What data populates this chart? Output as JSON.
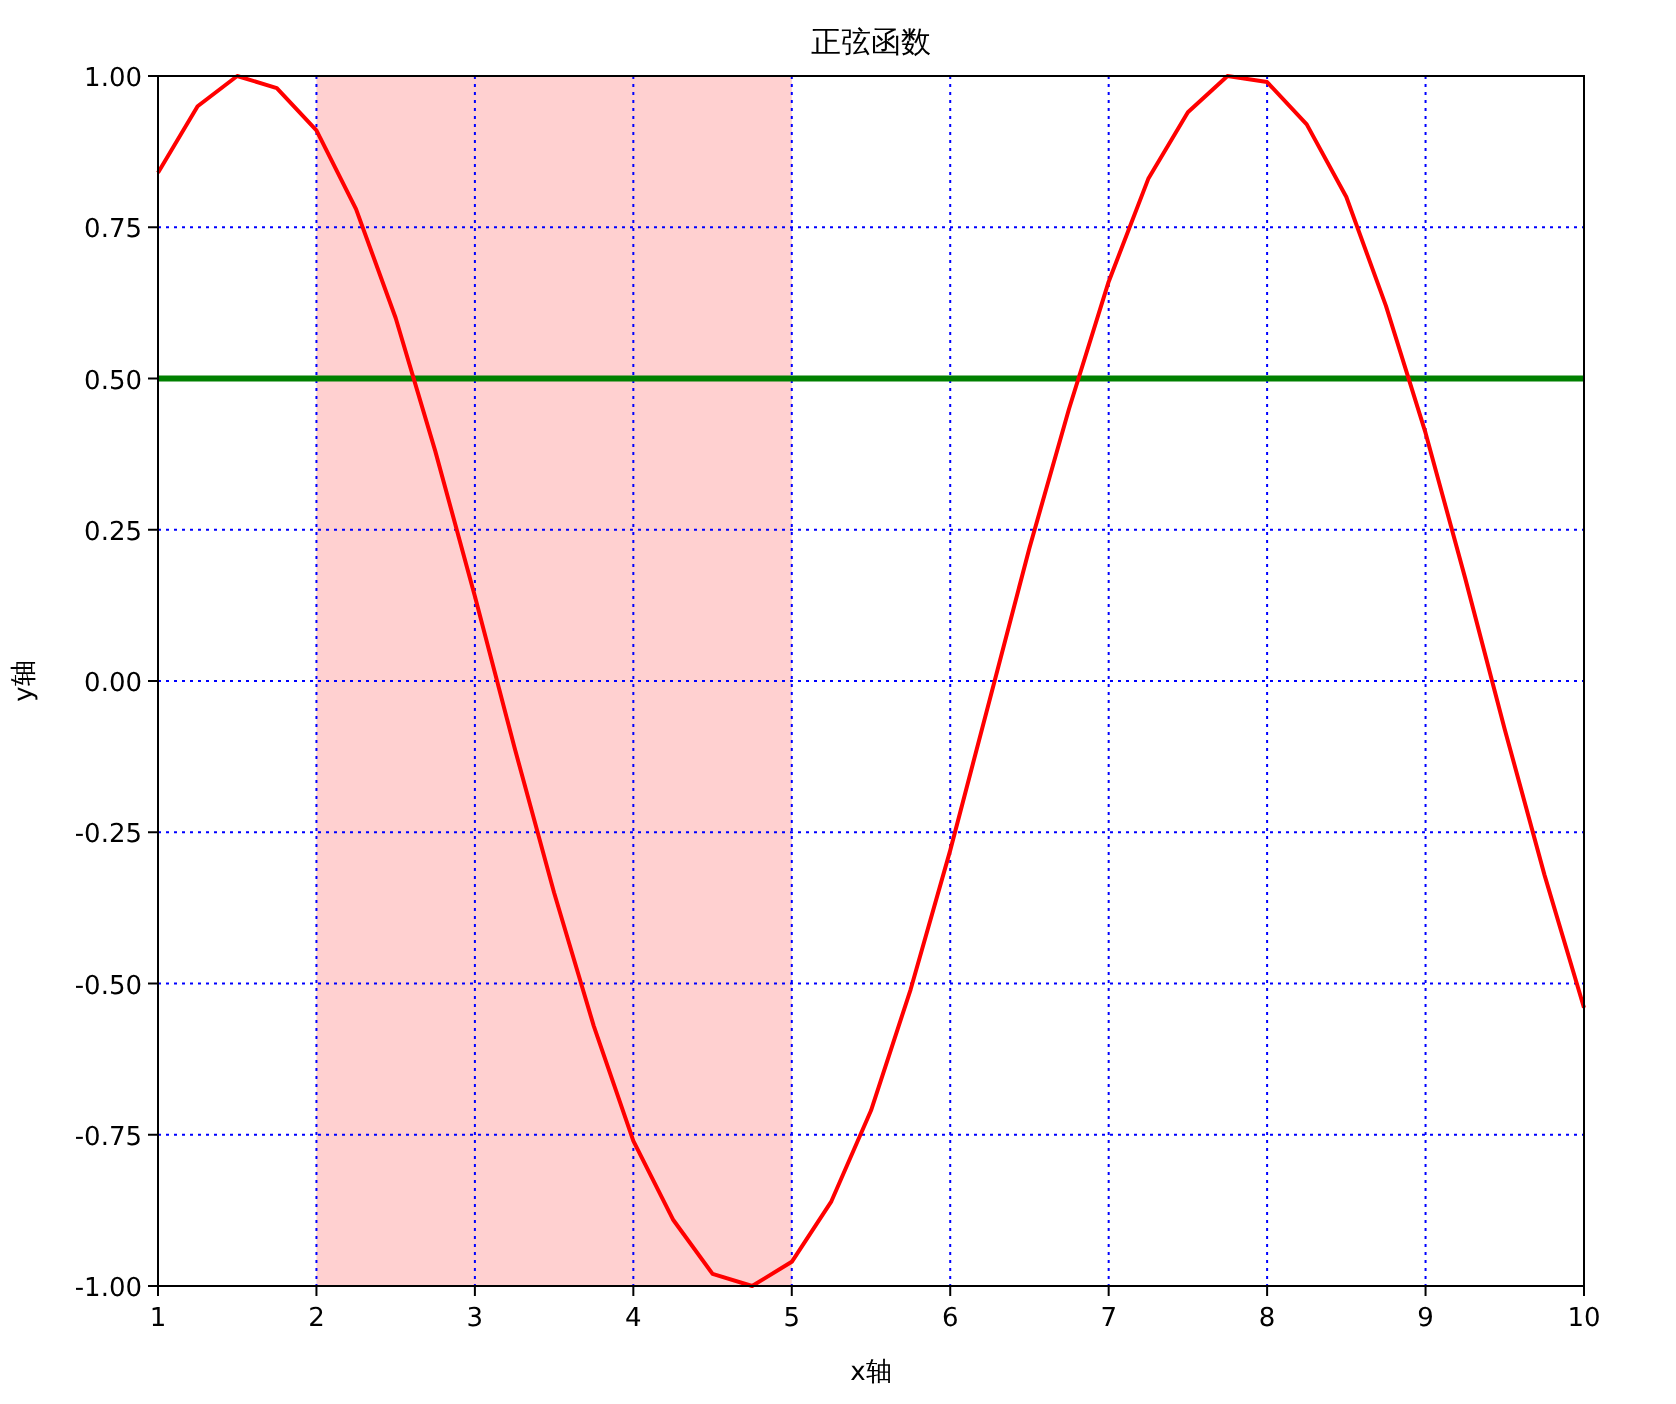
{
  "chart_data": {
    "type": "line",
    "title": "正弦函数",
    "xlabel": "x轴",
    "ylabel": "y轴",
    "x": [
      1,
      1.25,
      1.5,
      1.75,
      2,
      2.25,
      2.5,
      2.75,
      3,
      3.25,
      3.5,
      3.75,
      4,
      4.25,
      4.5,
      4.75,
      5,
      5.25,
      5.5,
      5.75,
      6,
      6.25,
      6.5,
      6.75,
      7,
      7.25,
      7.5,
      7.75,
      8,
      8.25,
      8.5,
      8.75,
      9,
      9.25,
      9.5,
      9.75,
      10
    ],
    "series": [
      {
        "color": "#ff0000",
        "values": [
          0.84,
          0.95,
          1.0,
          0.98,
          0.91,
          0.78,
          0.6,
          0.38,
          0.14,
          -0.11,
          -0.35,
          -0.57,
          -0.76,
          -0.89,
          -0.98,
          -1.0,
          -0.96,
          -0.86,
          -0.71,
          -0.51,
          -0.28,
          -0.03,
          0.22,
          0.45,
          0.66,
          0.83,
          0.94,
          1.0,
          0.99,
          0.92,
          0.8,
          0.62,
          0.41,
          0.17,
          -0.08,
          -0.32,
          -0.54
        ]
      }
    ],
    "xlim": [
      1,
      10
    ],
    "xticks": [
      1,
      2,
      3,
      4,
      5,
      6,
      7,
      8,
      9,
      10
    ],
    "ylim": [
      -1,
      1
    ],
    "yticks": [
      {
        "value": -1,
        "label": "-1.00"
      },
      {
        "value": -0.75,
        "label": "-0.75"
      },
      {
        "value": -0.5,
        "label": "-0.50"
      },
      {
        "value": -0.25,
        "label": "-0.25"
      },
      {
        "value": 0,
        "label": "0.00"
      },
      {
        "value": 0.25,
        "label": "0.25"
      },
      {
        "value": 0.5,
        "label": "0.50"
      },
      {
        "value": 0.75,
        "label": "0.75"
      },
      {
        "value": 1,
        "label": "1.00"
      }
    ],
    "ref_lines": [
      {
        "axis": "y",
        "value": 0.5,
        "color": "#008000",
        "line_style": "solid"
      }
    ],
    "bands": [
      {
        "axis": "x",
        "from": 2,
        "to": 5,
        "color": "#ffd0d0"
      }
    ],
    "grid": true,
    "line_style": "solid",
    "marker": "none"
  }
}
